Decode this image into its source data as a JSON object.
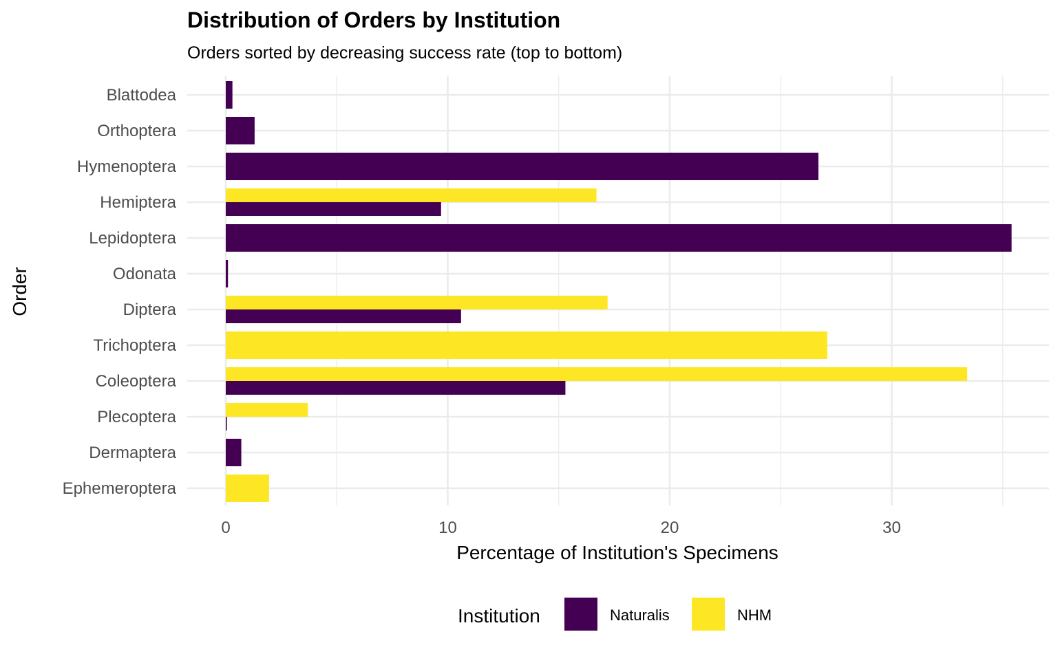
{
  "chart_data": {
    "type": "bar",
    "orientation": "horizontal",
    "title": "Distribution of Orders by Institution",
    "subtitle": "Orders sorted by decreasing success rate (top to bottom)",
    "xlabel": "Percentage of Institution's Specimens",
    "ylabel": "Order",
    "xlim": [
      -1.8,
      37.2
    ],
    "x_ticks": [
      0,
      10,
      20,
      30
    ],
    "x_tick_labels": [
      "0",
      "10",
      "20",
      "30"
    ],
    "categories": [
      "Blattodea",
      "Orthoptera",
      "Hymenoptera",
      "Hemiptera",
      "Lepidoptera",
      "Odonata",
      "Diptera",
      "Trichoptera",
      "Coleoptera",
      "Plecoptera",
      "Dermaptera",
      "Ephemeroptera"
    ],
    "series": [
      {
        "name": "Naturalis",
        "color": "#440154",
        "values": [
          0.3,
          1.3,
          26.7,
          9.7,
          35.4,
          0.1,
          10.6,
          null,
          15.3,
          0.05,
          0.7,
          null
        ]
      },
      {
        "name": "NHM",
        "color": "#FDE725",
        "values": [
          null,
          null,
          null,
          16.7,
          null,
          null,
          17.2,
          27.1,
          33.4,
          3.7,
          null,
          1.95
        ]
      }
    ],
    "grid": true,
    "legend": {
      "title": "Institution",
      "position": "bottom"
    }
  }
}
